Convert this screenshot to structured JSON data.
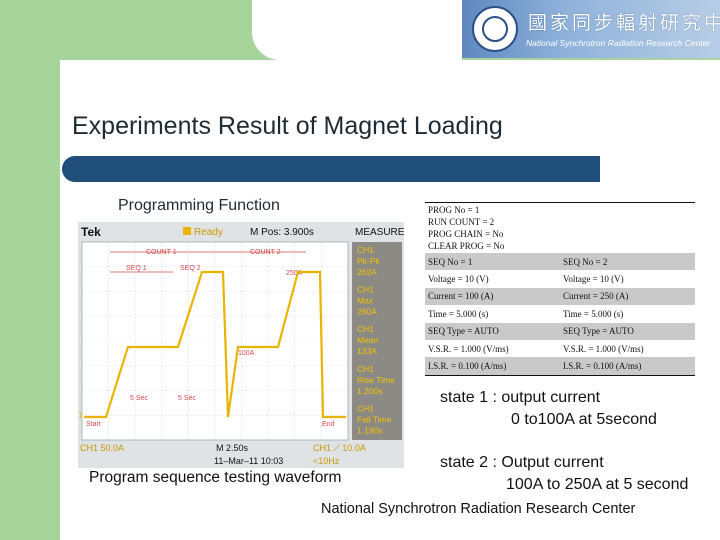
{
  "logo": {
    "chinese": "國家同步輻射研究中心",
    "english": "National Synchrotron Radiation Research Center",
    "seal_text": "NSRRC"
  },
  "slide": {
    "title": "Experiments Result of Magnet Loading",
    "subheading": "Programming Function",
    "waveform_caption": "Program sequence testing waveform",
    "footer": "National Synchrotron Radiation Research Center",
    "state1_line1": "state 1 : output current",
    "state1_line2": "0 to100A at 5second",
    "state2_line1": "state 2 : Output current",
    "state2_line2": "100A to 250A at 5 second"
  },
  "params": {
    "header_lines": [
      "PROG No = 1",
      "RUN COUNT = 2",
      "PROG CHAIN = No",
      "CLEAR PROG = No"
    ],
    "rows": [
      [
        "SEQ No = 1",
        "SEQ No = 2"
      ],
      [
        "Voltage = 10 (V)",
        "Voltage = 10 (V)"
      ],
      [
        "Current = 100 (A)",
        "Current = 250 (A)"
      ],
      [
        "Time = 5.000 (s)",
        "Time = 5.000 (s)"
      ],
      [
        "SEQ Type = AUTO",
        "SEQ Type = AUTO"
      ],
      [
        "V.S.R. = 1.000 (V/ms)",
        "V.S.R. = 1.000 (V/ms)"
      ],
      [
        "I.S.R. = 0.100 (A/ms)",
        "I.S.R. = 0.100 (A/ms)"
      ]
    ]
  },
  "scope": {
    "brand": "Tek",
    "status": "Ready",
    "mpos": "M Pos: 3.900s",
    "measure_title": "MEASURE",
    "measurements": [
      {
        "ch": "CH1",
        "name": "Pk-Pk",
        "value": "262A"
      },
      {
        "ch": "CH1",
        "name": "Max",
        "value": "260A"
      },
      {
        "ch": "CH1",
        "name": "Mean",
        "value": "133A"
      },
      {
        "ch": "CH1",
        "name": "Rise Time",
        "value": "1.200s"
      },
      {
        "ch": "CH1",
        "name": "Fall Time",
        "value": "1.190s"
      }
    ],
    "labels": {
      "count1": "COUNT 1",
      "count2": "COUNT 2",
      "seq1": "SEQ 1",
      "seq2": "SEQ 2",
      "level_250": "250A",
      "level_100": "100A",
      "sec_a": "5 Sec",
      "sec_b": "5 Sec",
      "start": "Start",
      "end": "End",
      "marker": "1"
    },
    "bottom": {
      "ch1_scale": "CH1  50.0A",
      "timebase": "M 2.50s",
      "trigger": "CH1  ⟋  10.0A",
      "date": "11–Mar–11  10:03",
      "freq": "<10Hz"
    },
    "colors": {
      "trace": "#e8b400",
      "labels": "#d24a4a",
      "background": "#ffffff",
      "measure_bg": "#8c8a85"
    }
  }
}
